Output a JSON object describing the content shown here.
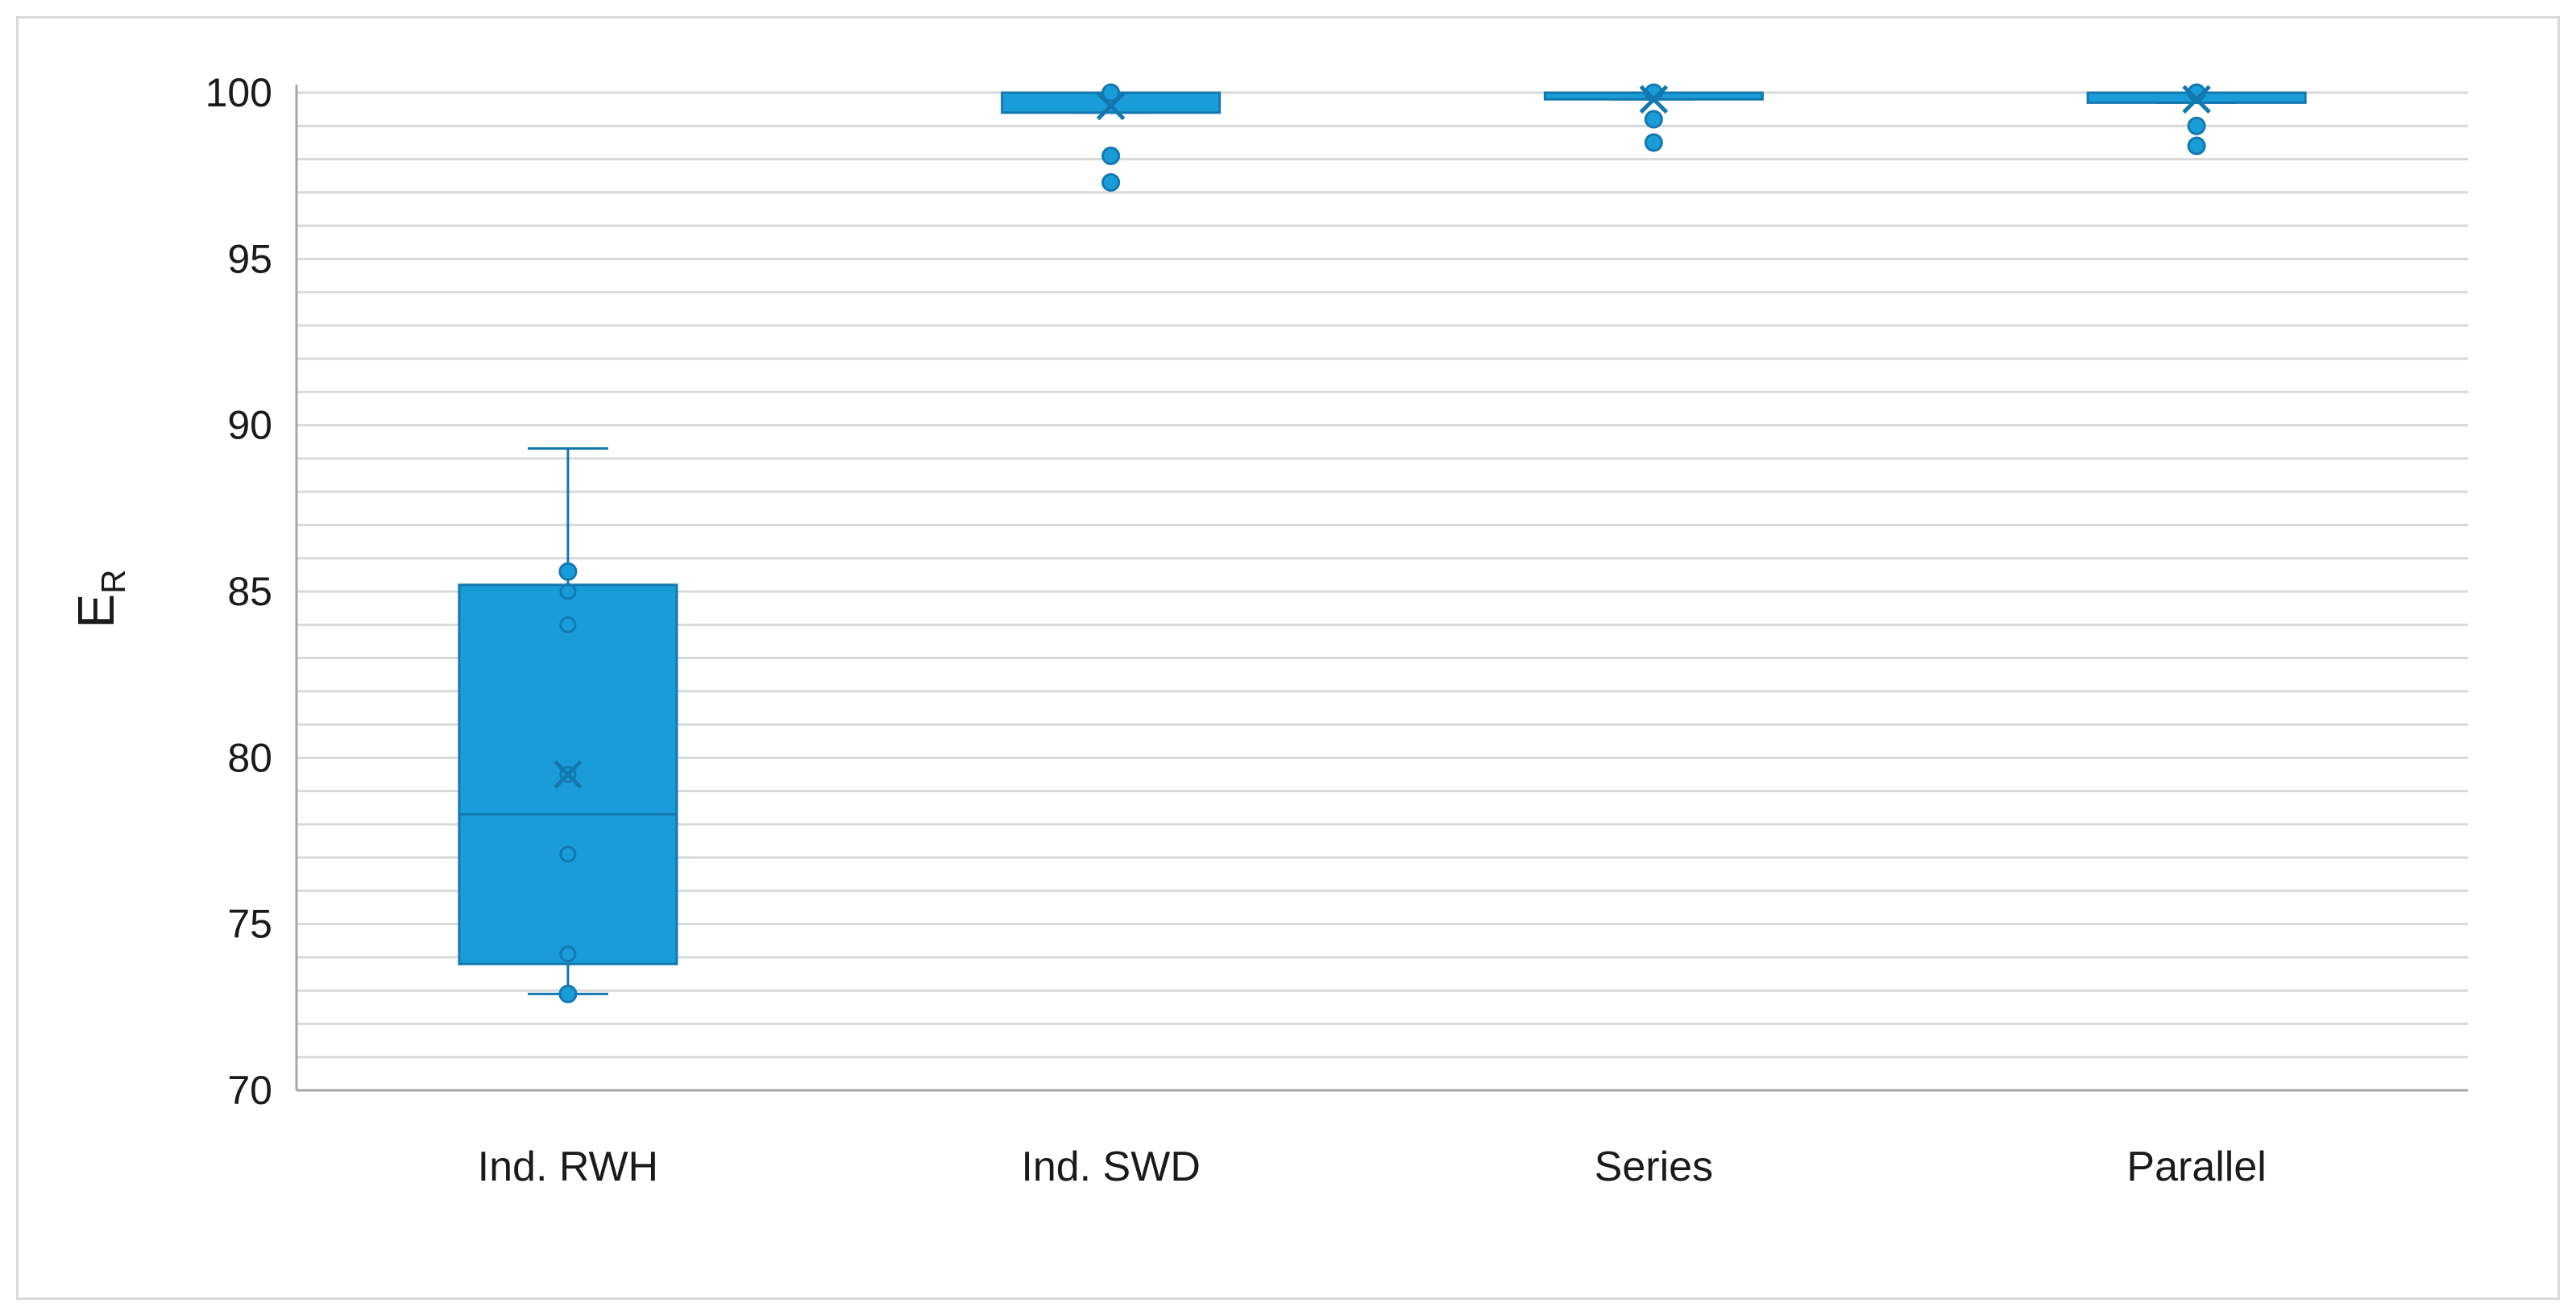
{
  "chart_data": {
    "type": "box",
    "ylabel": "E",
    "ylabel_subscript": "R",
    "xlabel": "",
    "title": "",
    "ylim": [
      70,
      100
    ],
    "yticks": [
      70,
      75,
      80,
      85,
      90,
      95,
      100
    ],
    "minor_grid_step": 1,
    "grid": true,
    "legend": "none",
    "colors": {
      "box_fill": "#1a9cd8",
      "box_stroke": "#1478b0",
      "grid": "#d9d9d9",
      "axis": "#a6a6a6"
    },
    "categories": [
      "Ind. RWH",
      "Ind. SWD",
      "Series",
      "Parallel"
    ],
    "boxes": [
      {
        "category": "Ind. RWH",
        "whisker_min": 72.9,
        "q1": 73.8,
        "median": 78.3,
        "q3": 85.2,
        "whisker_max": 89.3,
        "mean": 79.5,
        "points": [
          {
            "y": 85.6,
            "filled": true
          },
          {
            "y": 85.0,
            "filled": false
          },
          {
            "y": 84.0,
            "filled": false
          },
          {
            "y": 79.5,
            "filled": false
          },
          {
            "y": 77.1,
            "filled": false
          },
          {
            "y": 74.1,
            "filled": false
          },
          {
            "y": 72.9,
            "filled": true
          }
        ]
      },
      {
        "category": "Ind. SWD",
        "whisker_min": 99.4,
        "q1": 99.4,
        "median": 100.0,
        "q3": 100.0,
        "whisker_max": 100.0,
        "mean": 99.6,
        "points": [
          {
            "y": 100.0,
            "filled": true
          },
          {
            "y": 98.1,
            "filled": true
          },
          {
            "y": 97.3,
            "filled": true
          }
        ]
      },
      {
        "category": "Series",
        "whisker_min": 99.8,
        "q1": 99.8,
        "median": 100.0,
        "q3": 100.0,
        "whisker_max": 100.0,
        "mean": 99.8,
        "points": [
          {
            "y": 100.0,
            "filled": true
          },
          {
            "y": 99.2,
            "filled": true
          },
          {
            "y": 98.5,
            "filled": true
          }
        ]
      },
      {
        "category": "Parallel",
        "whisker_min": 99.7,
        "q1": 99.7,
        "median": 100.0,
        "q3": 100.0,
        "whisker_max": 100.0,
        "mean": 99.8,
        "points": [
          {
            "y": 100.0,
            "filled": true
          },
          {
            "y": 99.0,
            "filled": true
          },
          {
            "y": 98.4,
            "filled": true
          }
        ]
      }
    ]
  }
}
